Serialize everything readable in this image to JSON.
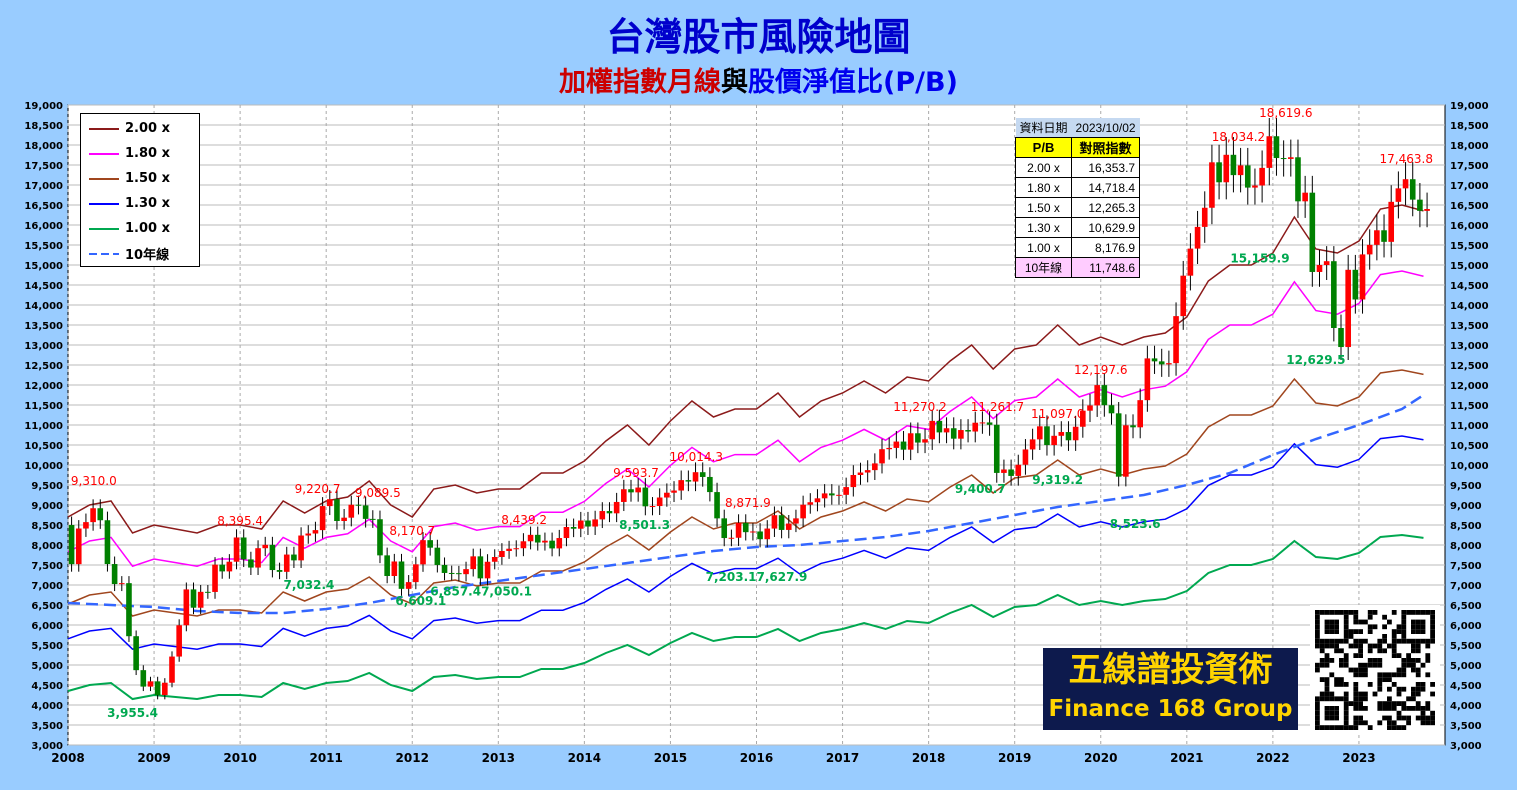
{
  "header": {
    "title": "台灣股市風險地圖",
    "subtitle_parts": [
      "加權指數月線",
      "與",
      "股價淨值比(P/B)"
    ]
  },
  "legend": [
    {
      "label": "2.00 x",
      "color": "#8b1a1a",
      "style": "solid"
    },
    {
      "label": "1.80 x",
      "color": "#ff00ff",
      "style": "solid"
    },
    {
      "label": "1.50 x",
      "color": "#a0461e",
      "style": "solid"
    },
    {
      "label": "1.30 x",
      "color": "#0000ff",
      "style": "solid"
    },
    {
      "label": "1.00 x",
      "color": "#00a850",
      "style": "solid"
    },
    {
      "label": "10年線",
      "color": "#3366ff",
      "style": "dashed"
    }
  ],
  "table": {
    "date_label": "資料日期",
    "date": "2023/10/02",
    "col1": "P/B",
    "col2": "對照指數",
    "rows": [
      [
        "2.00 x",
        "16,353.7"
      ],
      [
        "1.80 x",
        "14,718.4"
      ],
      [
        "1.50 x",
        "12,265.3"
      ],
      [
        "1.30 x",
        "10,629.9"
      ],
      [
        "1.00 x",
        "8,176.9"
      ]
    ],
    "ma_row": [
      "10年線",
      "11,748.6"
    ]
  },
  "logo": {
    "line1": "五線譜投資術",
    "line2": "Finance 168 Group"
  },
  "chart_data": {
    "type": "candlestick",
    "ylim": [
      3000,
      19000
    ],
    "ystep": 500,
    "xlim": [
      2008,
      2024
    ],
    "x_ticks": [
      "2008",
      "2009",
      "2010",
      "2011",
      "2012",
      "2013",
      "2014",
      "2015",
      "2016",
      "2017",
      "2018",
      "2019",
      "2020",
      "2021",
      "2022",
      "2023"
    ],
    "grid": true,
    "legend_position": "top-left",
    "colors": {
      "up": "#ff0000",
      "down": "#008000"
    },
    "monthly_close_start": "2008-01",
    "first_open": 8500,
    "monthly_close": [
      7521,
      8412,
      8572,
      8919,
      8619,
      7524,
      7024,
      7046,
      5720,
      4871,
      4460,
      4591,
      4248,
      4557,
      5211,
      5993,
      6890,
      6432,
      6829,
      6826,
      7509,
      7340,
      7582,
      8188,
      7640,
      7436,
      7920,
      8004,
      7374,
      7329,
      7761,
      7616,
      8237,
      8287,
      8372,
      8973,
      9145,
      8600,
      8683,
      9007,
      8989,
      8653,
      8644,
      7741,
      7225,
      7588,
      6904,
      7072,
      7517,
      8121,
      7933,
      7501,
      7301,
      7296,
      7271,
      7397,
      7716,
      7166,
      7581,
      7700,
      7850,
      7907,
      7919,
      8093,
      8254,
      8062,
      8108,
      7915,
      8174,
      8450,
      8407,
      8612,
      8462,
      8640,
      8849,
      8792,
      9076,
      9394,
      9316,
      9436,
      8967,
      8974,
      9187,
      9307,
      9362,
      9622,
      9586,
      9820,
      9701,
      9323,
      8666,
      8174,
      8181,
      8554,
      8321,
      8338,
      8145,
      8411,
      8745,
      8377,
      8536,
      8666,
      9008,
      9069,
      9167,
      9290,
      9240,
      9254,
      9448,
      9750,
      9812,
      9872,
      10040,
      10395,
      10427,
      10586,
      10383,
      10793,
      10561,
      10643,
      11103,
      10815,
      10919,
      10658,
      10874,
      10837,
      11057,
      11064,
      11006,
      9802,
      9888,
      9727,
      10007,
      10389,
      10641,
      10967,
      10498,
      10730,
      10824,
      10618,
      10956,
      11358,
      11489,
      11997,
      11495,
      11292,
      9708,
      10992,
      10942,
      11621,
      12665,
      12591,
      12516,
      12546,
      13722,
      14733,
      15410,
      15953,
      16431,
      17567,
      17068,
      17755,
      17247,
      17490,
      16935,
      16987,
      17428,
      18219,
      17674,
      17652,
      17693,
      16592,
      16808,
      14826,
      15000,
      15095,
      13425,
      12949,
      14880,
      14138,
      15265,
      15504,
      15868,
      15579,
      16579,
      16916,
      17145,
      16634,
      16353,
      16400
    ],
    "pb_multiples": [
      2.0,
      1.8,
      1.5,
      1.3,
      1.0
    ],
    "pb_1x_quarterly_start": 2008,
    "pb_1x_quarterly": [
      4350,
      4500,
      4550,
      4150,
      4250,
      4200,
      4150,
      4250,
      4250,
      4200,
      4550,
      4400,
      4550,
      4600,
      4800,
      4500,
      4350,
      4700,
      4750,
      4650,
      4700,
      4700,
      4900,
      4900,
      5050,
      5300,
      5500,
      5250,
      5550,
      5800,
      5600,
      5700,
      5700,
      5900,
      5600,
      5800,
      5900,
      6050,
      5900,
      6100,
      6050,
      6300,
      6500,
      6200,
      6450,
      6500,
      6750,
      6500,
      6600,
      6500,
      6600,
      6650,
      6850,
      7300,
      7500,
      7500,
      7650,
      8100,
      7700,
      7650,
      7800,
      8200,
      8250,
      8177
    ],
    "ma10": [
      [
        2008,
        6550
      ],
      [
        2008.5,
        6500
      ],
      [
        2009,
        6450
      ],
      [
        2009.5,
        6350
      ],
      [
        2010,
        6300
      ],
      [
        2010.5,
        6300
      ],
      [
        2011,
        6400
      ],
      [
        2011.5,
        6550
      ],
      [
        2012,
        6750
      ],
      [
        2012.5,
        6950
      ],
      [
        2013,
        7100
      ],
      [
        2013.5,
        7250
      ],
      [
        2014,
        7400
      ],
      [
        2014.5,
        7550
      ],
      [
        2015,
        7700
      ],
      [
        2015.5,
        7850
      ],
      [
        2016,
        7950
      ],
      [
        2016.5,
        8000
      ],
      [
        2017,
        8100
      ],
      [
        2017.5,
        8200
      ],
      [
        2018,
        8350
      ],
      [
        2018.5,
        8550
      ],
      [
        2019,
        8750
      ],
      [
        2019.5,
        8950
      ],
      [
        2020,
        9100
      ],
      [
        2020.5,
        9250
      ],
      [
        2021,
        9500
      ],
      [
        2021.5,
        9800
      ],
      [
        2022,
        10250
      ],
      [
        2022.5,
        10650
      ],
      [
        2023,
        11000
      ],
      [
        2023.5,
        11400
      ],
      [
        2023.75,
        11748.6
      ]
    ],
    "high_labels": [
      [
        2008.3,
        9500,
        "9,310.0"
      ],
      [
        2010,
        8500,
        "8,395.4"
      ],
      [
        2010.9,
        9300,
        "9,220.7"
      ],
      [
        2011.6,
        9200,
        "9,089.5"
      ],
      [
        2012,
        8250,
        "8,170.7"
      ],
      [
        2013.3,
        8520,
        "8,439.2"
      ],
      [
        2014.6,
        9700,
        "9,593.7"
      ],
      [
        2015.3,
        10100,
        "10,014.3"
      ],
      [
        2015.9,
        8950,
        "8,871.9"
      ],
      [
        2017.9,
        11350,
        "11,270.2"
      ],
      [
        2018.8,
        11350,
        "11,261.7"
      ],
      [
        2019.5,
        11170,
        "11,097.0"
      ],
      [
        2020,
        12270,
        "12,197.6"
      ],
      [
        2021.6,
        18100,
        "18,034.2"
      ],
      [
        2022.15,
        18700,
        "18,619.6"
      ],
      [
        2023.55,
        17550,
        "17,463.8"
      ]
    ],
    "low_labels": [
      [
        2008.75,
        3700,
        "3,955.4"
      ],
      [
        2010.8,
        6900,
        "7,032.4"
      ],
      [
        2012.1,
        6500,
        "6,609.1"
      ],
      [
        2012.8,
        6740,
        "6,857.47,050.1"
      ],
      [
        2014.7,
        8400,
        "8,501.3"
      ],
      [
        2016.0,
        7100,
        "7,203.17,627.9"
      ],
      [
        2018.6,
        9300,
        "9,400.7"
      ],
      [
        2019.5,
        9520,
        "9,319.2"
      ],
      [
        2020.4,
        8420,
        "8,523.6"
      ],
      [
        2021.85,
        15060,
        "15,159.9"
      ],
      [
        2022.5,
        12530,
        "12,629.5"
      ]
    ]
  }
}
